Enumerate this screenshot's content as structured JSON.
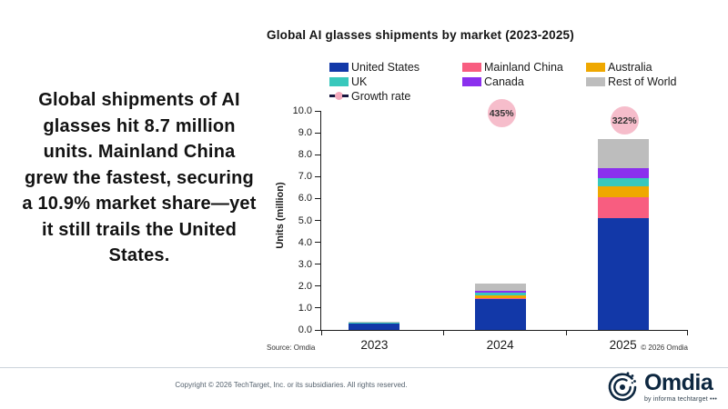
{
  "title": "Global AI glasses shipments by market (2023-2025)",
  "summary_text": "Global shipments of AI glasses hit 8.7 million units. Mainland China grew the fastest, securing a 10.9% market share—yet it still trails the United States.",
  "chart_data": {
    "type": "bar",
    "stacked": true,
    "title": "Global AI glasses shipments by market (2023-2025)",
    "categories": [
      "2023",
      "2024",
      "2025"
    ],
    "series": [
      {
        "name": "United States",
        "color": "#1238A8",
        "values": [
          0.29,
          1.4,
          5.1
        ]
      },
      {
        "name": "Mainland China",
        "color": "#F85D80",
        "values": [
          0.01,
          0.05,
          0.95
        ]
      },
      {
        "name": "Australia",
        "color": "#EFA800",
        "values": [
          0.01,
          0.12,
          0.5
        ]
      },
      {
        "name": "UK",
        "color": "#38C8BC",
        "values": [
          0.01,
          0.12,
          0.4
        ]
      },
      {
        "name": "Canada",
        "color": "#8B30EE",
        "values": [
          0.02,
          0.11,
          0.45
        ]
      },
      {
        "name": "Rest of World",
        "color": "#BDBDBD",
        "values": [
          0.05,
          0.3,
          1.3
        ]
      }
    ],
    "growth_rate": {
      "name": "Growth rate",
      "labels": [
        null,
        "435%",
        "322%"
      ],
      "bubble_color": "#F6BDCB",
      "marker_line_color": "#16163F",
      "marker_dot_color": "#F4AABD"
    },
    "xlabel": "",
    "ylabel": "Units (million)",
    "ylim": [
      0,
      10
    ],
    "ytick_step": 1.0,
    "grid": false,
    "legend_position": "top",
    "source": "Source: Omdia",
    "copyright": "© 2026 Omdia"
  },
  "footer": {
    "copyright": "Copyright © 2026 TechTarget, Inc. or its subsidiaries. All rights reserved.",
    "logo": {
      "text": "Omdia",
      "subtext": "by informa techtarget •••"
    }
  }
}
